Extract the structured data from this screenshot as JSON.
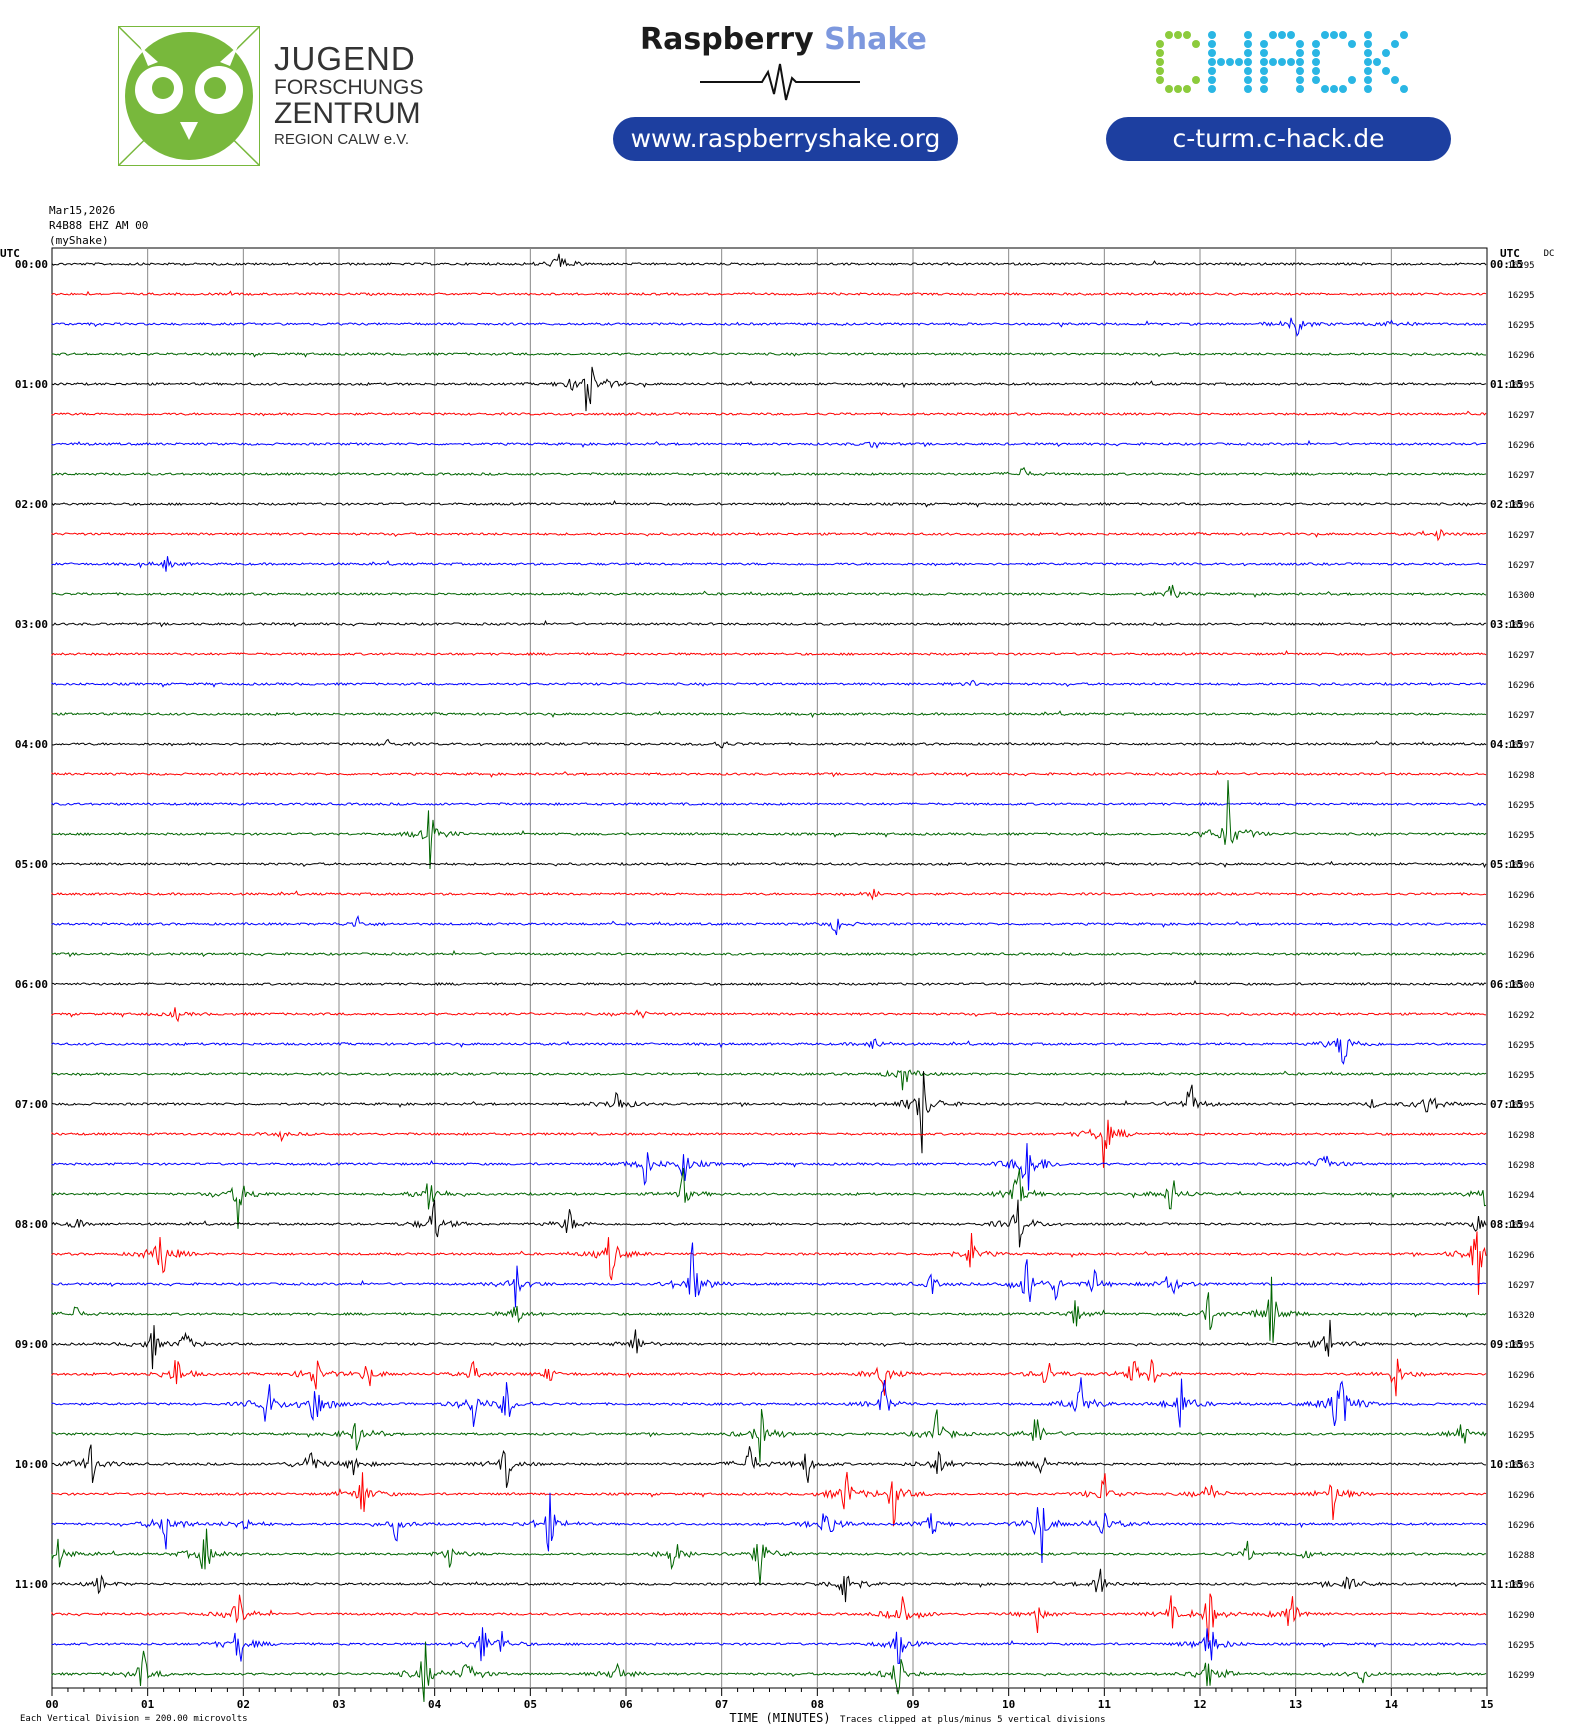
{
  "header": {
    "jfz_lines": [
      "JUGEND",
      "FORSCHUNGS",
      "ZENTRUM",
      "REGION CALW e.V."
    ],
    "rs_title_dark": "Raspberry",
    "rs_title_light": "Shake",
    "rs_url": "www.raspberryshake.org",
    "chack_url": "c-turm.c-hack.de",
    "chack_logo": "CHACK",
    "colors": {
      "jfz_green": "#78b83c",
      "pill_blue": "#1d3fa0",
      "chack_green": "#8ccb3c",
      "chack_blue": "#2ab6e4",
      "rs_light": "#7d98de"
    }
  },
  "meta": {
    "date": "Mar15,2026",
    "station": "R4B88 EHZ AM 00",
    "network": "(myShake)"
  },
  "chart_data": {
    "type": "line",
    "title": "",
    "left_axis_title": "UTC",
    "right_axis_title": "UTC",
    "dc_title": "DC",
    "xlabel": "TIME (MINUTES)",
    "x_ticks": [
      "00",
      "01",
      "02",
      "03",
      "04",
      "05",
      "06",
      "07",
      "08",
      "09",
      "10",
      "11",
      "12",
      "13",
      "14",
      "15"
    ],
    "xlim": [
      0,
      15
    ],
    "grid": true,
    "trace_colors": [
      "#000000",
      "#ff0000",
      "#0000ff",
      "#006400"
    ],
    "left_hour_labels": [
      "00:00",
      "01:00",
      "02:00",
      "03:00",
      "04:00",
      "05:00",
      "06:00",
      "07:00",
      "08:00",
      "09:00",
      "10:00",
      "11:00"
    ],
    "right_hour_labels": [
      "00:15",
      "01:15",
      "02:15",
      "03:15",
      "04:15",
      "05:15",
      "06:15",
      "07:15",
      "08:15",
      "09:15",
      "10:15",
      "11:15"
    ],
    "dc_values": [
      "16295",
      "16295",
      "16295",
      "16296",
      "16295",
      "16297",
      "16296",
      "16297",
      "16296",
      "16297",
      "16297",
      "16300",
      "16296",
      "16297",
      "16296",
      "16297",
      "16297",
      "16298",
      "16295",
      "16295",
      "16296",
      "16296",
      "16298",
      "16296",
      "16300",
      "16292",
      "16295",
      "16295",
      "16295",
      "16298",
      "16298",
      "16294",
      "16294",
      "16296",
      "16297",
      "16320",
      "16295",
      "16296",
      "16294",
      "16295",
      "16363",
      "16296",
      "16296",
      "16288",
      "16296",
      "16290",
      "16295",
      "16299"
    ],
    "footer_left": "Each Vertical Division =  200.00 microvolts",
    "footer_right": "Traces clipped at plus/minus 5 vertical divisions",
    "events": [
      [
        [
          5.3,
          22
        ]
      ],
      [],
      [
        [
          13.0,
          22
        ],
        [
          14.0,
          12
        ]
      ],
      [],
      [
        [
          5.6,
          70
        ]
      ],
      [],
      [
        [
          8.6,
          8
        ]
      ],
      [
        [
          10.15,
          10
        ]
      ],
      [],
      [
        [
          14.5,
          8
        ]
      ],
      [
        [
          1.2,
          10
        ]
      ],
      [
        [
          11.7,
          14
        ]
      ],
      [],
      [],
      [
        [
          9.6,
          6
        ]
      ],
      [],
      [
        [
          3.5,
          6
        ],
        [
          7.0,
          8
        ]
      ],
      [],
      [],
      [
        [
          3.95,
          38
        ],
        [
          12.3,
          70
        ]
      ],
      [],
      [
        [
          8.6,
          8
        ]
      ],
      [
        [
          3.2,
          10
        ],
        [
          8.2,
          14
        ]
      ],
      [],
      [],
      [
        [
          1.3,
          10
        ],
        [
          6.15,
          8
        ]
      ],
      [
        [
          8.6,
          12
        ],
        [
          13.5,
          40
        ]
      ],
      [
        [
          8.9,
          24
        ]
      ],
      [
        [
          5.9,
          26
        ],
        [
          9.1,
          60
        ],
        [
          11.9,
          30
        ],
        [
          14.4,
          30
        ],
        [
          13.8,
          6
        ]
      ],
      [
        [
          11.0,
          50
        ],
        [
          2.4,
          6
        ]
      ],
      [
        [
          6.2,
          30
        ],
        [
          6.6,
          30
        ],
        [
          13.3,
          24
        ],
        [
          10.2,
          70
        ]
      ],
      [
        [
          1.95,
          40
        ],
        [
          3.95,
          34
        ],
        [
          6.6,
          26
        ],
        [
          10.1,
          36
        ],
        [
          11.7,
          30
        ],
        [
          15.0,
          30
        ]
      ],
      [
        [
          0.25,
          12
        ],
        [
          4.0,
          36
        ],
        [
          5.4,
          22
        ],
        [
          10.1,
          40
        ],
        [
          14.9,
          12
        ]
      ],
      [
        [
          1.15,
          50
        ],
        [
          5.85,
          44
        ],
        [
          9.6,
          30
        ],
        [
          14.9,
          60
        ]
      ],
      [
        [
          4.85,
          30
        ],
        [
          6.7,
          60
        ],
        [
          9.2,
          14
        ],
        [
          10.2,
          44
        ],
        [
          10.5,
          20
        ],
        [
          11.7,
          30
        ],
        [
          10.9,
          20
        ]
      ],
      [
        [
          0.25,
          12
        ],
        [
          4.85,
          22
        ],
        [
          12.75,
          50
        ],
        [
          10.7,
          18
        ],
        [
          12.1,
          30
        ]
      ],
      [
        [
          1.05,
          30
        ],
        [
          1.4,
          22
        ],
        [
          6.1,
          20
        ],
        [
          13.35,
          36
        ]
      ],
      [
        [
          1.3,
          28
        ],
        [
          2.75,
          30
        ],
        [
          3.3,
          20
        ],
        [
          4.4,
          14
        ],
        [
          5.2,
          14
        ],
        [
          8.7,
          30
        ],
        [
          10.4,
          26
        ],
        [
          11.3,
          24
        ],
        [
          11.5,
          22
        ],
        [
          14.05,
          30
        ]
      ],
      [
        [
          2.25,
          40
        ],
        [
          2.75,
          50
        ],
        [
          4.4,
          34
        ],
        [
          4.75,
          34
        ],
        [
          8.7,
          30
        ],
        [
          10.75,
          40
        ],
        [
          11.8,
          40
        ],
        [
          13.4,
          44
        ],
        [
          13.5,
          52
        ]
      ],
      [
        [
          3.2,
          30
        ],
        [
          7.4,
          40
        ],
        [
          9.25,
          40
        ],
        [
          10.3,
          30
        ],
        [
          14.75,
          20
        ]
      ],
      [
        [
          0.4,
          40
        ],
        [
          2.7,
          30
        ],
        [
          3.15,
          20
        ],
        [
          4.75,
          30
        ],
        [
          7.3,
          30
        ],
        [
          7.9,
          24
        ],
        [
          9.25,
          30
        ],
        [
          10.35,
          20
        ]
      ],
      [
        [
          3.25,
          40
        ],
        [
          8.3,
          40
        ],
        [
          8.8,
          40
        ],
        [
          11.0,
          30
        ],
        [
          12.1,
          24
        ],
        [
          13.4,
          36
        ]
      ],
      [
        [
          1.2,
          40
        ],
        [
          2.0,
          20
        ],
        [
          3.6,
          20
        ],
        [
          5.2,
          40
        ],
        [
          8.1,
          40
        ],
        [
          9.2,
          20
        ],
        [
          10.35,
          40
        ],
        [
          11.0,
          30
        ],
        [
          10.3,
          24
        ]
      ],
      [
        [
          0.05,
          30
        ],
        [
          1.6,
          40
        ],
        [
          4.15,
          20
        ],
        [
          6.5,
          30
        ],
        [
          7.4,
          40
        ],
        [
          12.5,
          14
        ],
        [
          13.1,
          10
        ]
      ],
      [
        [
          0.5,
          14
        ],
        [
          8.3,
          40
        ],
        [
          10.95,
          24
        ],
        [
          13.55,
          24
        ]
      ],
      [
        [
          1.95,
          30
        ],
        [
          8.9,
          40
        ],
        [
          11.7,
          20
        ],
        [
          12.1,
          40
        ],
        [
          12.95,
          40
        ],
        [
          10.3,
          20
        ]
      ],
      [
        [
          1.95,
          36
        ],
        [
          4.7,
          20
        ],
        [
          4.5,
          30
        ],
        [
          8.85,
          30
        ],
        [
          12.1,
          40
        ]
      ],
      [
        [
          0.95,
          30
        ],
        [
          3.9,
          44
        ],
        [
          4.35,
          30
        ],
        [
          5.9,
          24
        ],
        [
          8.85,
          40
        ],
        [
          13.7,
          14
        ],
        [
          12.1,
          40
        ]
      ]
    ]
  }
}
